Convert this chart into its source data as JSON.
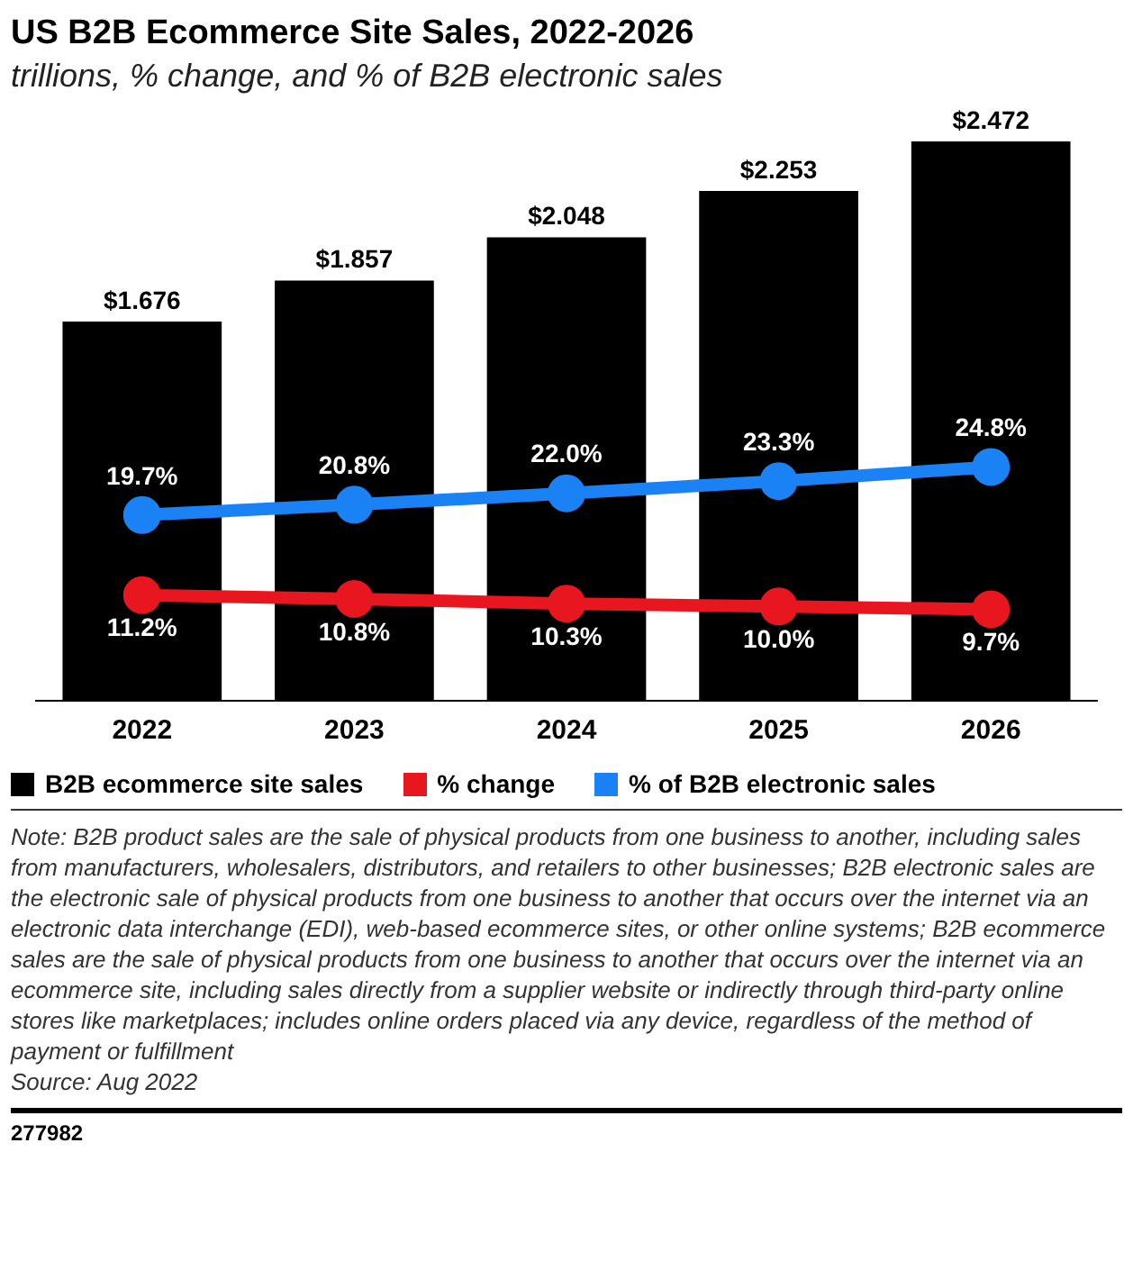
{
  "chart_data": {
    "type": "bar",
    "title": "US B2B Ecommerce Site Sales, 2022-2026",
    "subtitle": "trillions, % change, and % of B2B electronic sales",
    "categories": [
      "2022",
      "2023",
      "2024",
      "2025",
      "2026"
    ],
    "series": [
      {
        "name": "B2B ecommerce site sales",
        "color": "#000000",
        "values": [
          1.676,
          1.857,
          2.048,
          2.253,
          2.472
        ],
        "value_labels": [
          "$1.676",
          "$1.857",
          "$2.048",
          "$2.253",
          "$2.472"
        ]
      },
      {
        "name": "% change",
        "type": "line",
        "axis": "y2",
        "color": "#e8161e",
        "values": [
          11.2,
          10.8,
          10.3,
          10.0,
          9.7
        ],
        "value_labels": [
          "11.2%",
          "10.8%",
          "10.3%",
          "10.0%",
          "9.7%"
        ]
      },
      {
        "name": "% of B2B electronic sales",
        "type": "line",
        "axis": "y2",
        "color": "#1a82f5",
        "values": [
          19.7,
          20.8,
          22.0,
          23.3,
          24.8
        ],
        "value_labels": [
          "19.7%",
          "20.8%",
          "22.0%",
          "23.3%",
          "24.8%"
        ]
      }
    ],
    "legend": "bottom left",
    "marker": "circle",
    "grid": false,
    "tick_labels": "x",
    "annotations": [
      "Note: B2B product sales are the sale of physical products from one business to another, including sales from manufacturers, wholesalers, distributors, and retailers to other businesses; B2B electronic sales are the electronic sale of physical products from one business to another that occurs over the internet via an electronic data interchange (EDI), web-based ecommerce sites, or other online systems; B2B ecommerce sales are the sale of physical products from one business to another that occurs over the internet via an ecommerce site, including sales directly from a supplier website or indirectly through third-party online stores like marketplaces; includes online orders placed via any device, regardless of the method of payment or fulfillment",
      "Source: Aug 2022",
      "277982"
    ]
  }
}
